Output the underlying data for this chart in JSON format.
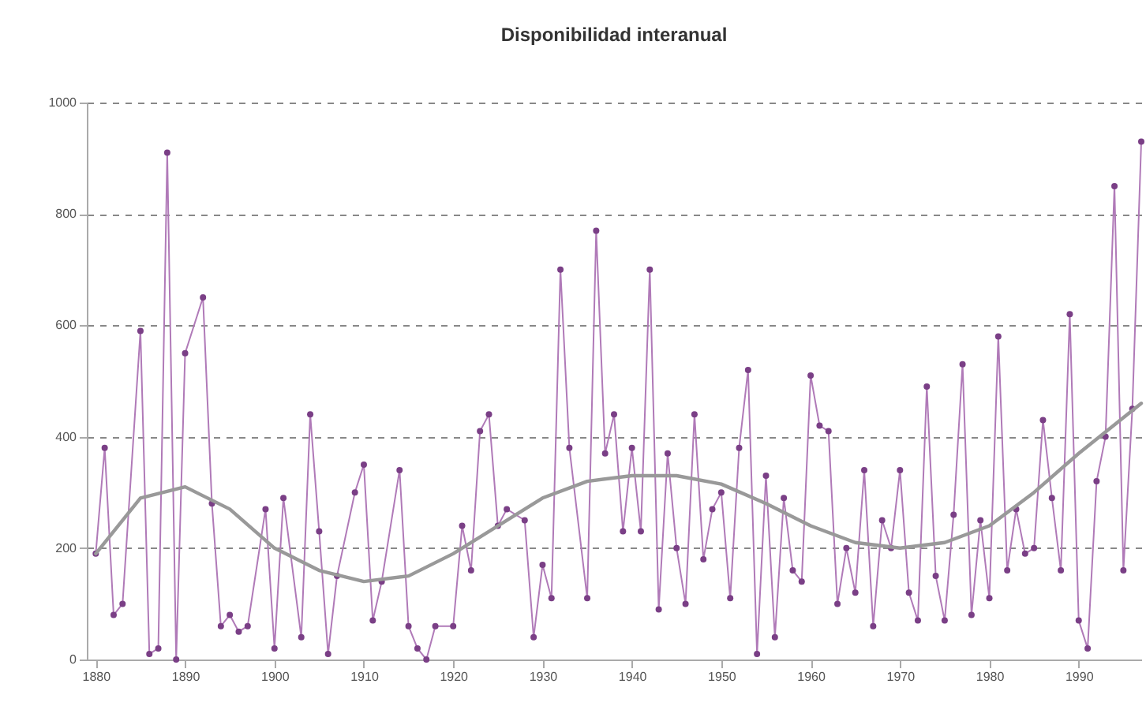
{
  "chart_data": {
    "type": "line",
    "title": "Disponibilidad interanual",
    "xlim": [
      1879,
      1997
    ],
    "xticks": [
      1880,
      1890,
      1900,
      1910,
      1920,
      1930,
      1940,
      1950,
      1960,
      1970,
      1980,
      1990
    ],
    "ylim": [
      0,
      1000
    ],
    "yticks": [
      0,
      200,
      400,
      600,
      800,
      1000
    ],
    "grid": "y",
    "line_style": "solid",
    "series": [
      {
        "color": "#b07ab8",
        "marker": "circle",
        "x": [
          1880,
          1881,
          1882,
          1883,
          1885,
          1886,
          1887,
          1888,
          1889,
          1890,
          1892,
          1893,
          1894,
          1895,
          1896,
          1897,
          1899,
          1900,
          1901,
          1903,
          1904,
          1905,
          1906,
          1907,
          1909,
          1910,
          1911,
          1912,
          1914,
          1915,
          1916,
          1917,
          1918,
          1920,
          1921,
          1922,
          1923,
          1924,
          1925,
          1926,
          1928,
          1929,
          1930,
          1931,
          1932,
          1933,
          1935,
          1936,
          1937,
          1938,
          1939,
          1940,
          1941,
          1942,
          1943,
          1944,
          1945,
          1946,
          1947,
          1948,
          1949,
          1950,
          1951,
          1952,
          1953,
          1954,
          1955,
          1956,
          1957,
          1958,
          1959,
          1960,
          1961,
          1962,
          1963,
          1964,
          1965,
          1966,
          1967,
          1968,
          1969,
          1970,
          1971,
          1972,
          1973,
          1974,
          1975,
          1976,
          1977,
          1978,
          1979,
          1980,
          1981,
          1982,
          1983,
          1984,
          1985,
          1986,
          1987,
          1988,
          1989,
          1990,
          1991,
          1992,
          1993,
          1994,
          1995,
          1996,
          1997
        ],
        "values": [
          190,
          380,
          80,
          100,
          590,
          10,
          20,
          910,
          0,
          550,
          650,
          280,
          60,
          80,
          50,
          60,
          270,
          20,
          290,
          40,
          440,
          230,
          10,
          150,
          300,
          350,
          70,
          140,
          340,
          60,
          20,
          0,
          60,
          60,
          240,
          160,
          410,
          440,
          240,
          270,
          250,
          40,
          170,
          110,
          700,
          380,
          110,
          770,
          370,
          440,
          230,
          380,
          230,
          700,
          90,
          370,
          200,
          100,
          440,
          180,
          270,
          300,
          110,
          380,
          520,
          10,
          330,
          40,
          290,
          160,
          140,
          510,
          420,
          410,
          100,
          200,
          120,
          340,
          60,
          250,
          200,
          340,
          120,
          70,
          490,
          150,
          70,
          260,
          530,
          80,
          250,
          110,
          580,
          160,
          270,
          190,
          200,
          430,
          290,
          160,
          620,
          70,
          20,
          320,
          400,
          850,
          160,
          450,
          930
        ]
      },
      {
        "color": "#999999",
        "marker": "none",
        "x": [
          1880,
          1885,
          1890,
          1895,
          1900,
          1905,
          1910,
          1915,
          1920,
          1925,
          1930,
          1935,
          1940,
          1945,
          1950,
          1955,
          1960,
          1965,
          1970,
          1975,
          1980,
          1985,
          1990,
          1997
        ],
        "values": [
          190,
          290,
          310,
          270,
          200,
          160,
          140,
          150,
          190,
          240,
          290,
          320,
          330,
          330,
          315,
          280,
          240,
          210,
          200,
          210,
          240,
          300,
          370,
          460
        ]
      }
    ]
  }
}
